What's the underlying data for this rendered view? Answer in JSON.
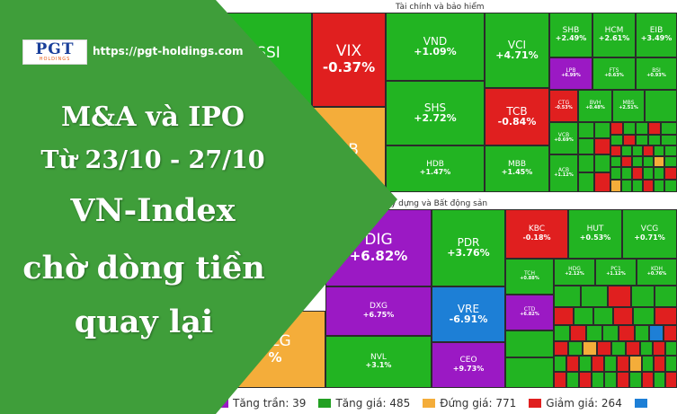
{
  "brand": {
    "logo_text": "PGT",
    "logo_sub": "HOLDINGS",
    "url": "https://pgt-holdings.com"
  },
  "headline": {
    "line1": "M&A và IPO",
    "line2": "Từ 23/10 - 27/10",
    "line3": "VN-Index",
    "line4": "chờ dòng tiền",
    "line5": "quay lại"
  },
  "treemap": {
    "sections": [
      {
        "title": "Tài chính và bảo hiểm"
      },
      {
        "title": "y dựng và Bất động sản"
      }
    ],
    "finance_cells": [
      {
        "ticker": "SSI",
        "pct": "%",
        "color": "g"
      },
      {
        "ticker": "VIX",
        "pct": "-0.37%",
        "color": "r"
      },
      {
        "ticker": "PB",
        "pct": "",
        "color": "yl"
      },
      {
        "ticker": "VND",
        "pct": "+1.09%",
        "color": "g"
      },
      {
        "ticker": "VCI",
        "pct": "+4.71%",
        "color": "g"
      },
      {
        "ticker": "SHB",
        "pct": "+2.49%",
        "color": "g"
      },
      {
        "ticker": "HCM",
        "pct": "+2.61%",
        "color": "g"
      },
      {
        "ticker": "EIB",
        "pct": "+3.49%",
        "color": "g"
      },
      {
        "ticker": "SHS",
        "pct": "+2.72%",
        "color": "g"
      },
      {
        "ticker": "TCB",
        "pct": "-0.84%",
        "color": "r"
      },
      {
        "ticker": "LPB",
        "pct": "+6.99%",
        "color": "pu"
      },
      {
        "ticker": "FTS",
        "pct": "+0.63%",
        "color": "g"
      },
      {
        "ticker": "BSI",
        "pct": "+0.93%",
        "color": "g"
      },
      {
        "ticker": "CTG",
        "pct": "-0.53%",
        "color": "r"
      },
      {
        "ticker": "VCB",
        "pct": "+0.69%",
        "color": "g"
      },
      {
        "ticker": "HDB",
        "pct": "+1.47%",
        "color": "g"
      },
      {
        "ticker": "MBB",
        "pct": "+1.45%",
        "color": "g"
      },
      {
        "ticker": "ACB",
        "pct": "+1.12%",
        "color": "g"
      },
      {
        "ticker": "BVH",
        "pct": "+0.48%",
        "color": "g"
      },
      {
        "ticker": "MBS",
        "pct": "+2.51%",
        "color": "g"
      }
    ],
    "realestate_cells": [
      {
        "ticker": "DIG",
        "pct": "+6.82%",
        "color": "pu"
      },
      {
        "ticker": "PDR",
        "pct": "+3.76%",
        "color": "g"
      },
      {
        "ticker": "KBC",
        "pct": "-0.18%",
        "color": "r"
      },
      {
        "ticker": "HUT",
        "pct": "+0.53%",
        "color": "g"
      },
      {
        "ticker": "VCG",
        "pct": "+0.71%",
        "color": "g"
      },
      {
        "ticker": "TCH",
        "pct": "+0.88%",
        "color": "g"
      },
      {
        "ticker": "DXG",
        "pct": "+6.75%",
        "color": "pu"
      },
      {
        "ticker": "VRE",
        "pct": "-6.91%",
        "color": "bl"
      },
      {
        "ticker": "CTD",
        "pct": "+6.82%",
        "color": "pu"
      },
      {
        "ticker": "NVL",
        "pct": "+3.1%",
        "color": "g"
      },
      {
        "ticker": "CEO",
        "pct": "+9.73%",
        "color": "pu"
      },
      {
        "ticker": "NLG",
        "pct": "%",
        "color": "yl"
      },
      {
        "ticker": "HDG",
        "pct": "+2.12%",
        "color": "g"
      },
      {
        "ticker": "PC1",
        "pct": "+1.12%",
        "color": "g"
      },
      {
        "ticker": "KDH",
        "pct": "+0.76%",
        "color": "g"
      }
    ]
  },
  "legend": [
    {
      "label": "Tăng trần: 39",
      "color": "#9b19c4"
    },
    {
      "label": "Tăng giá: 485",
      "color": "#22a022"
    },
    {
      "label": "Đứng giá: 771",
      "color": "#f4ad3a"
    },
    {
      "label": "Giảm giá: 264",
      "color": "#e01f1f"
    },
    {
      "label": "",
      "color": "#1d7fd6"
    }
  ],
  "colors": {
    "overlay_green": "#3f9e3a",
    "up": "#22b422",
    "down": "#e01f1f",
    "ceiling": "#9b19c4",
    "floor": "#1d7fd6",
    "flat": "#f4ad3a"
  }
}
